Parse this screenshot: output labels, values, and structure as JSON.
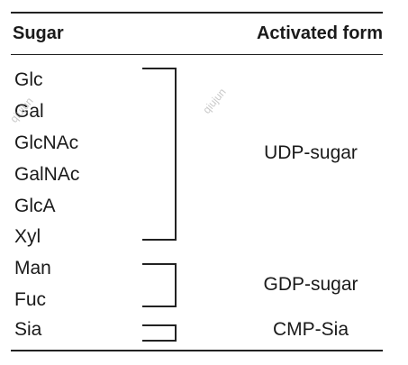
{
  "table": {
    "headers": {
      "sugar": "Sugar",
      "activated_form": "Activated form"
    },
    "sugars": [
      "Glc",
      "Gal",
      "GlcNAc",
      "GalNAc",
      "GlcA",
      "Xyl",
      "Man",
      "Fuc",
      "Sia"
    ],
    "groups": [
      {
        "label": "UDP-sugar",
        "members": [
          "Glc",
          "Gal",
          "GlcNAc",
          "GalNAc",
          "GlcA",
          "Xyl"
        ]
      },
      {
        "label": "GDP-sugar",
        "members": [
          "Man",
          "Fuc"
        ]
      },
      {
        "label": "CMP-Sia",
        "members": [
          "Sia"
        ]
      }
    ]
  },
  "watermark": "qiujun"
}
